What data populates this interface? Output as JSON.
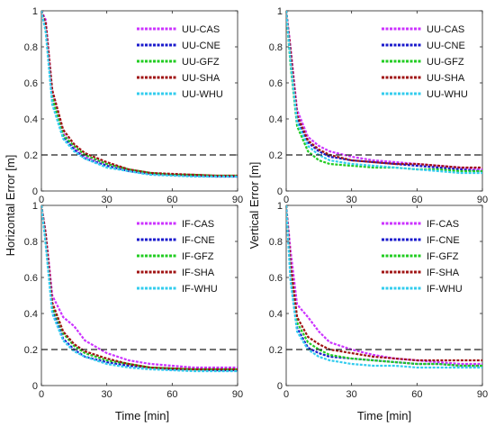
{
  "figure": {
    "ylabel_top": "Horizontal Error [m]",
    "ylabel_right": "Vertical Error [m]",
    "xlabel": "Time [min]"
  },
  "chart_data": [
    {
      "type": "line",
      "id": "uu-horizontal",
      "ylabel": "Horizontal Error [m]",
      "xlabel": "",
      "xlim": [
        0,
        90
      ],
      "ylim": [
        0,
        1
      ],
      "xticks": [
        0,
        30,
        60,
        90
      ],
      "yticks": [
        0,
        0.2,
        0.4,
        0.6,
        0.8,
        1
      ],
      "threshold": 0.2,
      "legend": "top-right",
      "x": [
        0,
        2,
        5,
        10,
        15,
        20,
        30,
        40,
        50,
        60,
        70,
        80,
        90
      ],
      "series": [
        {
          "name": "UU-CAS",
          "color": "#cc33ff",
          "values": [
            1.0,
            0.95,
            0.55,
            0.32,
            0.24,
            0.19,
            0.15,
            0.12,
            0.1,
            0.09,
            0.09,
            0.085,
            0.08
          ]
        },
        {
          "name": "UU-CNE",
          "color": "#1a1acc",
          "values": [
            1.0,
            0.9,
            0.5,
            0.3,
            0.23,
            0.18,
            0.14,
            0.11,
            0.095,
            0.09,
            0.085,
            0.08,
            0.08
          ]
        },
        {
          "name": "UU-GFZ",
          "color": "#22cc22",
          "values": [
            1.0,
            0.92,
            0.52,
            0.31,
            0.25,
            0.2,
            0.15,
            0.12,
            0.1,
            0.09,
            0.09,
            0.085,
            0.085
          ]
        },
        {
          "name": "UU-SHA",
          "color": "#a01414",
          "values": [
            1.0,
            0.93,
            0.56,
            0.34,
            0.26,
            0.21,
            0.16,
            0.12,
            0.1,
            0.095,
            0.09,
            0.085,
            0.085
          ]
        },
        {
          "name": "UU-WHU",
          "color": "#33ccee",
          "values": [
            1.0,
            0.88,
            0.48,
            0.29,
            0.22,
            0.18,
            0.13,
            0.11,
            0.09,
            0.085,
            0.08,
            0.08,
            0.08
          ]
        }
      ]
    },
    {
      "type": "line",
      "id": "uu-vertical",
      "ylabel": "Vertical Error [m]",
      "xlabel": "",
      "xlim": [
        0,
        90
      ],
      "ylim": [
        0,
        1
      ],
      "xticks": [
        0,
        30,
        60,
        90
      ],
      "yticks": [
        0,
        0.2,
        0.4,
        0.6,
        0.8,
        1
      ],
      "threshold": 0.2,
      "legend": "top-right",
      "x": [
        0,
        2,
        5,
        10,
        15,
        20,
        30,
        40,
        50,
        60,
        70,
        80,
        90
      ],
      "series": [
        {
          "name": "UU-CAS",
          "color": "#cc33ff",
          "values": [
            1.0,
            0.8,
            0.45,
            0.3,
            0.25,
            0.22,
            0.19,
            0.17,
            0.16,
            0.15,
            0.14,
            0.13,
            0.12
          ]
        },
        {
          "name": "UU-CNE",
          "color": "#1a1acc",
          "values": [
            1.0,
            0.75,
            0.4,
            0.27,
            0.22,
            0.19,
            0.17,
            0.16,
            0.15,
            0.14,
            0.13,
            0.12,
            0.11
          ]
        },
        {
          "name": "UU-GFZ",
          "color": "#22cc22",
          "values": [
            1.0,
            0.7,
            0.36,
            0.22,
            0.17,
            0.15,
            0.14,
            0.13,
            0.13,
            0.12,
            0.12,
            0.11,
            0.11
          ]
        },
        {
          "name": "UU-SHA",
          "color": "#a01414",
          "values": [
            1.0,
            0.78,
            0.42,
            0.28,
            0.23,
            0.2,
            0.17,
            0.16,
            0.15,
            0.15,
            0.14,
            0.13,
            0.13
          ]
        },
        {
          "name": "UU-WHU",
          "color": "#33ccee",
          "values": [
            1.0,
            0.72,
            0.38,
            0.25,
            0.2,
            0.17,
            0.15,
            0.14,
            0.13,
            0.12,
            0.11,
            0.1,
            0.1
          ]
        }
      ]
    },
    {
      "type": "line",
      "id": "if-horizontal",
      "ylabel": "Horizontal Error [m]",
      "xlabel": "Time [min]",
      "xlim": [
        0,
        90
      ],
      "ylim": [
        0,
        1
      ],
      "xticks": [
        0,
        30,
        60,
        90
      ],
      "yticks": [
        0,
        0.2,
        0.4,
        0.6,
        0.8,
        1
      ],
      "threshold": 0.2,
      "legend": "top-right",
      "x": [
        0,
        2,
        5,
        10,
        15,
        20,
        30,
        40,
        50,
        60,
        70,
        80,
        90
      ],
      "series": [
        {
          "name": "IF-CAS",
          "color": "#cc33ff",
          "values": [
            1.0,
            0.85,
            0.5,
            0.38,
            0.33,
            0.25,
            0.18,
            0.14,
            0.12,
            0.11,
            0.1,
            0.1,
            0.1
          ]
        },
        {
          "name": "IF-CNE",
          "color": "#1a1acc",
          "values": [
            1.0,
            0.8,
            0.42,
            0.26,
            0.2,
            0.16,
            0.13,
            0.11,
            0.1,
            0.09,
            0.09,
            0.085,
            0.085
          ]
        },
        {
          "name": "IF-GFZ",
          "color": "#22cc22",
          "values": [
            1.0,
            0.82,
            0.44,
            0.29,
            0.22,
            0.18,
            0.14,
            0.12,
            0.1,
            0.095,
            0.09,
            0.09,
            0.09
          ]
        },
        {
          "name": "IF-SHA",
          "color": "#a01414",
          "values": [
            1.0,
            0.84,
            0.46,
            0.3,
            0.23,
            0.19,
            0.15,
            0.12,
            0.1,
            0.095,
            0.09,
            0.09,
            0.09
          ]
        },
        {
          "name": "IF-WHU",
          "color": "#33ccee",
          "values": [
            1.0,
            0.78,
            0.4,
            0.25,
            0.19,
            0.16,
            0.12,
            0.1,
            0.09,
            0.085,
            0.08,
            0.08,
            0.08
          ]
        }
      ]
    },
    {
      "type": "line",
      "id": "if-vertical",
      "ylabel": "Vertical Error [m]",
      "xlabel": "Time [min]",
      "xlim": [
        0,
        90
      ],
      "ylim": [
        0,
        1
      ],
      "xticks": [
        0,
        30,
        60,
        90
      ],
      "yticks": [
        0,
        0.2,
        0.4,
        0.6,
        0.8,
        1
      ],
      "threshold": 0.2,
      "legend": "top-right",
      "x": [
        0,
        2,
        5,
        10,
        15,
        20,
        30,
        40,
        50,
        60,
        70,
        80,
        90
      ],
      "series": [
        {
          "name": "IF-CAS",
          "color": "#cc33ff",
          "values": [
            1.0,
            0.75,
            0.45,
            0.38,
            0.3,
            0.24,
            0.2,
            0.17,
            0.15,
            0.14,
            0.13,
            0.12,
            0.12
          ]
        },
        {
          "name": "IF-CNE",
          "color": "#1a1acc",
          "values": [
            1.0,
            0.6,
            0.32,
            0.21,
            0.18,
            0.16,
            0.15,
            0.14,
            0.13,
            0.12,
            0.12,
            0.11,
            0.11
          ]
        },
        {
          "name": "IF-GFZ",
          "color": "#22cc22",
          "values": [
            1.0,
            0.65,
            0.35,
            0.24,
            0.2,
            0.17,
            0.15,
            0.14,
            0.13,
            0.12,
            0.12,
            0.11,
            0.11
          ]
        },
        {
          "name": "IF-SHA",
          "color": "#a01414",
          "values": [
            1.0,
            0.68,
            0.38,
            0.27,
            0.23,
            0.2,
            0.18,
            0.16,
            0.15,
            0.14,
            0.14,
            0.14,
            0.14
          ]
        },
        {
          "name": "IF-WHU",
          "color": "#33ccee",
          "values": [
            1.0,
            0.58,
            0.3,
            0.2,
            0.16,
            0.14,
            0.12,
            0.11,
            0.11,
            0.1,
            0.1,
            0.1,
            0.1
          ]
        }
      ]
    }
  ]
}
